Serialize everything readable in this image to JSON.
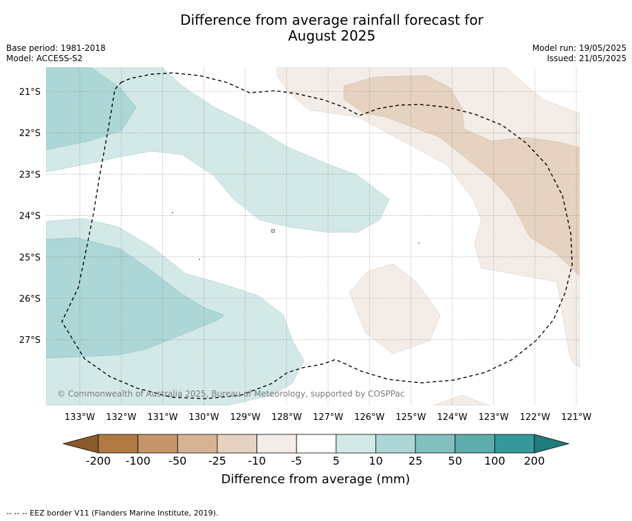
{
  "title_line1": "Difference from average rainfall forecast for",
  "title_line2": "August 2025",
  "base_period": "Base period: 1981-2018",
  "model": "Model: ACCESS-S2",
  "model_run": "Model run: 19/05/2025",
  "issued": "Issued: 21/05/2025",
  "copyright": "© Commonwealth of Australia 2025, Bureau of Meteorology, supported by COSPPac",
  "footnote": "-- -- -- EEZ border V11 (Flanders Marine Institute, 2019).",
  "lat_labels": [
    "21°S",
    "22°S",
    "23°S",
    "24°S",
    "25°S",
    "26°S",
    "27°S"
  ],
  "lon_labels": [
    "133°W",
    "132°W",
    "131°W",
    "130°W",
    "129°W",
    "128°W",
    "127°W",
    "126°W",
    "125°W",
    "124°W",
    "123°W",
    "122°W",
    "121°W"
  ],
  "colorbar": {
    "title": "Difference from average (mm)",
    "tick_labels": [
      "-200",
      "-100",
      "-50",
      "-25",
      "-10",
      "-5",
      "5",
      "10",
      "25",
      "50",
      "100",
      "200"
    ],
    "colors": [
      "#8a5a2c",
      "#b07a42",
      "#c4956a",
      "#d6b393",
      "#e6d2c0",
      "#f4ede7",
      "#ffffff",
      "#d3e9e8",
      "#acd7d6",
      "#82c0bf",
      "#5eacab",
      "#35999a",
      "#1f7b7c"
    ]
  }
}
